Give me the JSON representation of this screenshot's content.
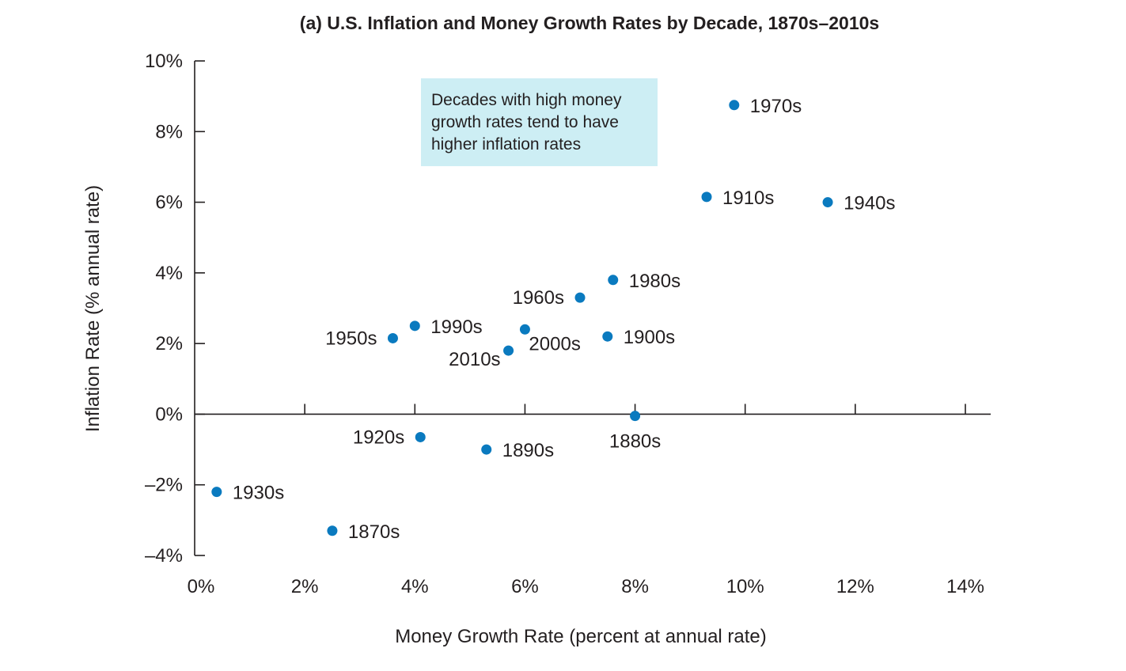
{
  "chart_data": {
    "type": "scatter",
    "title": "(a) U.S. Inflation and Money Growth Rates by Decade, 1870s–2010s",
    "xlabel": "Money Growth Rate (percent at annual rate)",
    "ylabel": "Inflation Rate (% annual rate)",
    "xlim": [
      0,
      14
    ],
    "ylim": [
      -4,
      10
    ],
    "x_ticks": [
      0,
      2,
      4,
      6,
      8,
      10,
      12,
      14
    ],
    "y_ticks": [
      -4,
      -2,
      0,
      2,
      4,
      6,
      8,
      10
    ],
    "x_tick_labels": [
      "0%",
      "2%",
      "4%",
      "6%",
      "8%",
      "10%",
      "12%",
      "14%"
    ],
    "y_tick_labels": [
      "–4%",
      "–2%",
      "0%",
      "2%",
      "4%",
      "6%",
      "8%",
      "10%"
    ],
    "grid": false,
    "point_color": "#0a7abf",
    "annotation": {
      "lines": [
        "Decades with high money",
        "growth rates tend to have",
        "higher inflation rates"
      ],
      "background": "#cdeef4"
    },
    "points": [
      {
        "label": "1870s",
        "x": 2.5,
        "y": -3.3,
        "label_side": "right"
      },
      {
        "label": "1880s",
        "x": 8.0,
        "y": -0.05,
        "label_side": "below"
      },
      {
        "label": "1890s",
        "x": 5.3,
        "y": -1.0,
        "label_side": "right"
      },
      {
        "label": "1900s",
        "x": 7.5,
        "y": 2.2,
        "label_side": "right"
      },
      {
        "label": "1910s",
        "x": 9.3,
        "y": 6.15,
        "label_side": "right"
      },
      {
        "label": "1920s",
        "x": 4.1,
        "y": -0.65,
        "label_side": "left"
      },
      {
        "label": "1930s",
        "x": 0.4,
        "y": -2.2,
        "label_side": "right"
      },
      {
        "label": "1940s",
        "x": 11.5,
        "y": 6.0,
        "label_side": "right"
      },
      {
        "label": "1950s",
        "x": 3.6,
        "y": 2.15,
        "label_side": "left"
      },
      {
        "label": "1960s",
        "x": 7.0,
        "y": 3.3,
        "label_side": "left"
      },
      {
        "label": "1970s",
        "x": 9.8,
        "y": 8.75,
        "label_side": "right"
      },
      {
        "label": "1980s",
        "x": 7.6,
        "y": 3.8,
        "label_side": "right"
      },
      {
        "label": "1990s",
        "x": 4.0,
        "y": 2.5,
        "label_side": "right"
      },
      {
        "label": "2000s",
        "x": 6.0,
        "y": 2.4,
        "label_side": "below-right"
      },
      {
        "label": "2010s",
        "x": 5.7,
        "y": 1.8,
        "label_side": "below-left"
      }
    ]
  }
}
